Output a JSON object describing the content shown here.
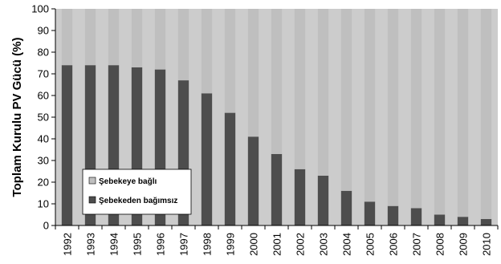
{
  "chart_data": {
    "type": "bar",
    "stacked": true,
    "ylabel": "Toplam Kurulu PV Gücü (%)",
    "xlabel": "",
    "ylim": [
      0,
      100
    ],
    "yticks": [
      0,
      10,
      20,
      30,
      40,
      50,
      60,
      70,
      80,
      90,
      100
    ],
    "grid": false,
    "legend_position": "bottom-left",
    "categories": [
      "1992",
      "1993",
      "1994",
      "1995",
      "1996",
      "1997",
      "1998",
      "1999",
      "2000",
      "2001",
      "2002",
      "2003",
      "2004",
      "2005",
      "2006",
      "2007",
      "2008",
      "2009",
      "2010"
    ],
    "series": [
      {
        "name": "Şebekeden bağımsız",
        "color": "#4d4d4d",
        "values": [
          74,
          74,
          74,
          73,
          72,
          67,
          61,
          52,
          41,
          33,
          26,
          23,
          16,
          11,
          9,
          8,
          5,
          4,
          3
        ]
      },
      {
        "name": "Şebekeye bağlı",
        "color": "#bfbfbf",
        "values": [
          26,
          26,
          26,
          27,
          28,
          33,
          39,
          48,
          59,
          67,
          74,
          77,
          84,
          89,
          91,
          92,
          95,
          96,
          97
        ]
      }
    ],
    "plot_background": "#cccccc"
  }
}
